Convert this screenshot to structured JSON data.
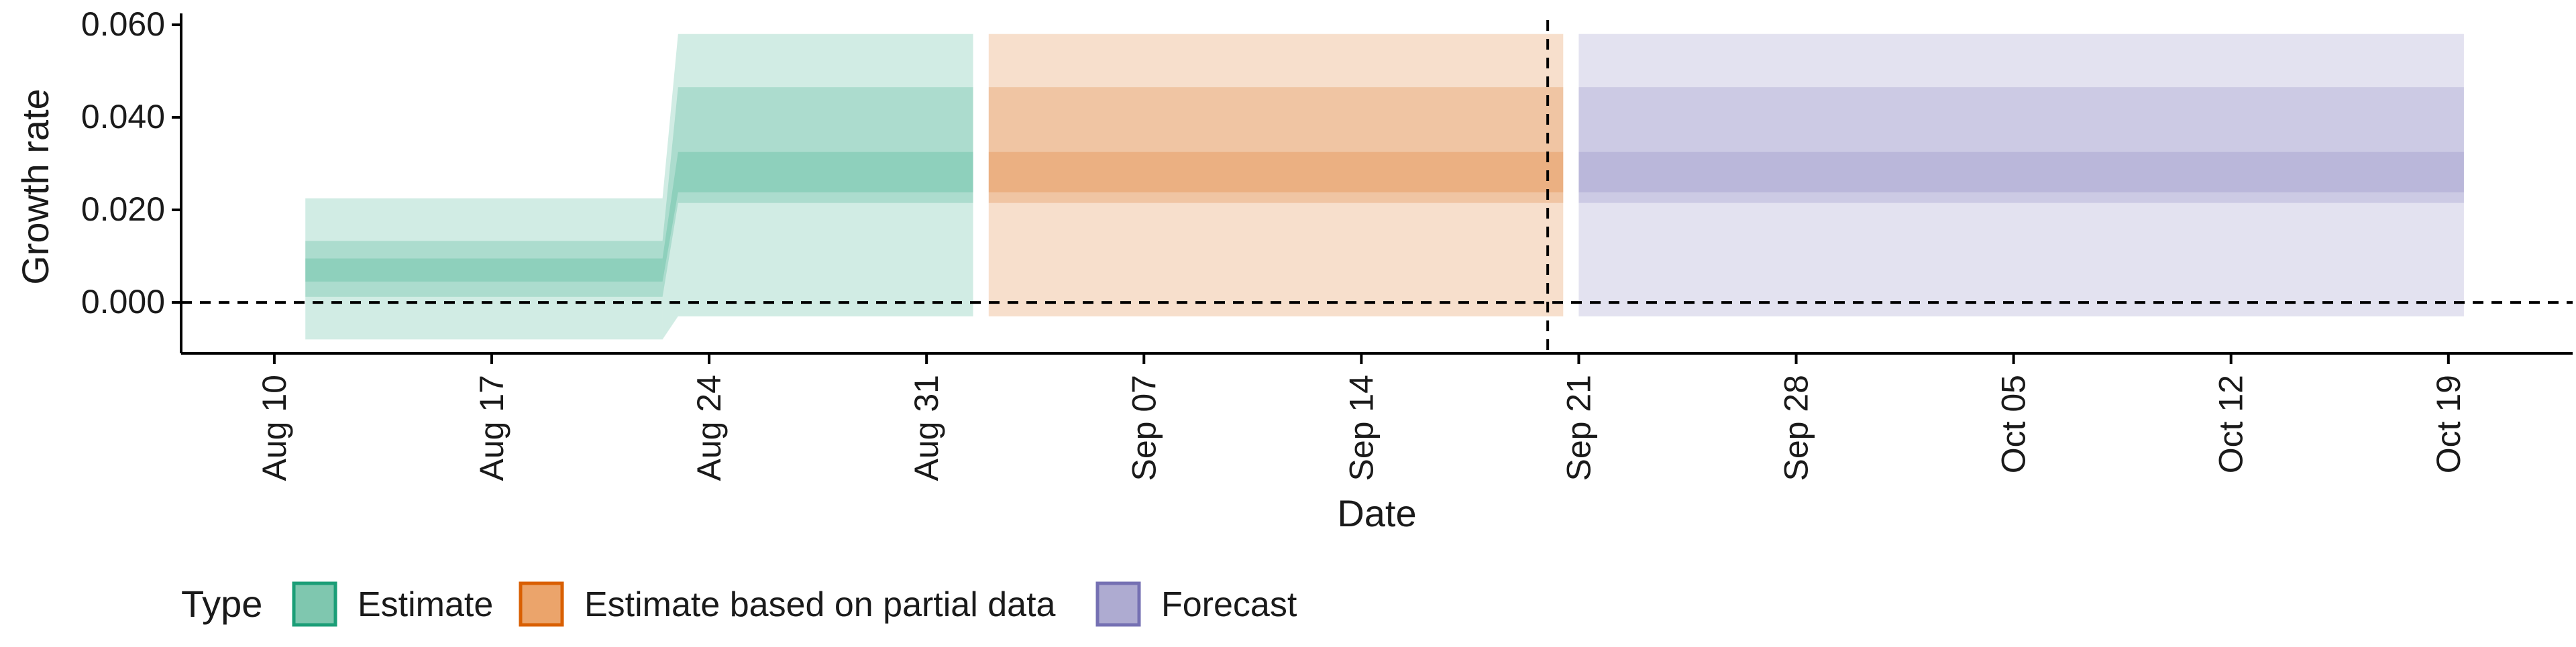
{
  "chart_data": {
    "type": "area",
    "title": "",
    "xlabel": "Date",
    "ylabel": "Growth rate",
    "x_axis": {
      "type": "date",
      "range": [
        "2020-08-07",
        "2020-10-23"
      ],
      "ticks": [
        {
          "date": "2020-08-10",
          "label": "Aug 10"
        },
        {
          "date": "2020-08-17",
          "label": "Aug 17"
        },
        {
          "date": "2020-08-24",
          "label": "Aug 24"
        },
        {
          "date": "2020-08-31",
          "label": "Aug 31"
        },
        {
          "date": "2020-09-07",
          "label": "Sep 07"
        },
        {
          "date": "2020-09-14",
          "label": "Sep 14"
        },
        {
          "date": "2020-09-21",
          "label": "Sep 21"
        },
        {
          "date": "2020-09-28",
          "label": "Sep 28"
        },
        {
          "date": "2020-10-05",
          "label": "Oct 05"
        },
        {
          "date": "2020-10-12",
          "label": "Oct 12"
        },
        {
          "date": "2020-10-19",
          "label": "Oct 19"
        }
      ]
    },
    "y_axis": {
      "range": [
        -0.011,
        0.061
      ],
      "ticks": [
        {
          "value": 0.0,
          "label": "0.000"
        },
        {
          "value": 0.02,
          "label": "0.020"
        },
        {
          "value": 0.04,
          "label": "0.040"
        },
        {
          "value": 0.06,
          "label": "0.060"
        }
      ]
    },
    "reference_lines": {
      "horizontal_y": 0.0,
      "vertical_date": "2020-09-20"
    },
    "grid": false,
    "legend": {
      "title": "Type",
      "position": "bottom-left",
      "items": [
        {
          "label": "Estimate",
          "fill": "#7fc7af",
          "stroke": "#1b9e77"
        },
        {
          "label": "Estimate based on partial data",
          "fill": "#eba46b",
          "stroke": "#d95f02"
        },
        {
          "label": "Forecast",
          "fill": "#aeabd1",
          "stroke": "#7570b3"
        }
      ]
    },
    "series": [
      {
        "name": "Estimate",
        "color": "#1b9e77",
        "segments": [
          {
            "x": [
              "2020-08-11",
              "2020-08-22"
            ],
            "bands": [
              {
                "level": "outer",
                "low": -0.008,
                "high": 0.0225
              },
              {
                "level": "middle",
                "low": 0.0012,
                "high": 0.0133
              },
              {
                "level": "inner",
                "low": 0.0045,
                "high": 0.0095
              }
            ]
          },
          {
            "x": [
              "2020-08-23",
              "2020-09-01"
            ],
            "bands": [
              {
                "level": "outer",
                "low": -0.003,
                "high": 0.058
              },
              {
                "level": "middle",
                "low": 0.0215,
                "high": 0.0465
              },
              {
                "level": "inner",
                "low": 0.0238,
                "high": 0.0325
              }
            ]
          }
        ]
      },
      {
        "name": "Estimate based on partial data",
        "color": "#d95f02",
        "segments": [
          {
            "x": [
              "2020-09-02",
              "2020-09-20"
            ],
            "bands": [
              {
                "level": "outer",
                "low": -0.003,
                "high": 0.058
              },
              {
                "level": "middle",
                "low": 0.0215,
                "high": 0.0465
              },
              {
                "level": "inner",
                "low": 0.0238,
                "high": 0.0325
              }
            ]
          }
        ]
      },
      {
        "name": "Forecast",
        "color": "#7570b3",
        "segments": [
          {
            "x": [
              "2020-09-21",
              "2020-10-19"
            ],
            "bands": [
              {
                "level": "outer",
                "low": -0.003,
                "high": 0.058
              },
              {
                "level": "middle",
                "low": 0.0215,
                "high": 0.0465
              },
              {
                "level": "inner",
                "low": 0.0238,
                "high": 0.0325
              }
            ]
          }
        ]
      }
    ]
  }
}
